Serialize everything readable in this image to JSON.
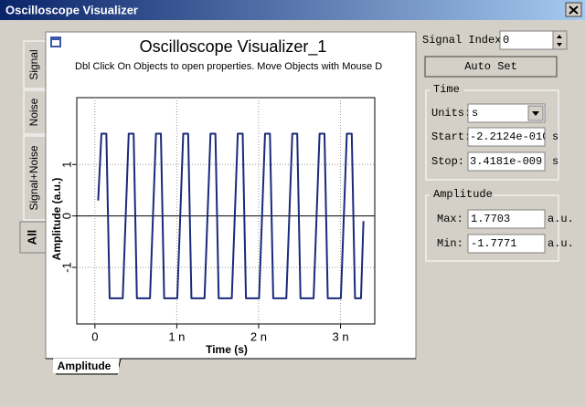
{
  "window": {
    "title": "Oscilloscope Visualizer"
  },
  "tabs": [
    "Signal",
    "Noise",
    "Signal+Noise",
    "All"
  ],
  "bottom_tab": "Amplitude",
  "chart_data": {
    "type": "line",
    "title": "Oscilloscope Visualizer_1",
    "subtitle": "Dbl Click On Objects to open properties.  Move Objects with Mouse D",
    "x_label": "Time (s)",
    "y_label": "Amplitude (a.u.)",
    "xlim": [
      -2.2124e-10,
      3.4181e-09
    ],
    "ylim": [
      -2.1,
      2.3
    ],
    "xticks": [
      {
        "value": 0,
        "label": "0"
      },
      {
        "value": 1e-09,
        "label": "1 n"
      },
      {
        "value": 2e-09,
        "label": "2 n"
      },
      {
        "value": 3e-09,
        "label": "3 n"
      }
    ],
    "yticks": [
      1,
      0,
      -1
    ],
    "grid": true,
    "series": [
      {
        "color": "#1a2a7a",
        "x": [
          4e-11,
          8e-11,
          1.4e-10,
          1.8e-10,
          3.4e-10,
          4.13e-10,
          4.73e-10,
          5.13e-10,
          6.73e-10,
          7.46e-10,
          8.06e-10,
          8.46e-10,
          1.006e-09,
          1.079e-09,
          1.139e-09,
          1.179e-09,
          1.339e-09,
          1.412e-09,
          1.472e-09,
          1.512e-09,
          1.672e-09,
          1.745e-09,
          1.805e-09,
          1.845e-09,
          2.005e-09,
          2.078e-09,
          2.138e-09,
          2.178e-09,
          2.338e-09,
          2.411e-09,
          2.471e-09,
          2.511e-09,
          2.671e-09,
          2.744e-09,
          2.804e-09,
          2.844e-09,
          3.004e-09,
          3.077e-09,
          3.137e-09,
          3.177e-09,
          3.25e-09,
          3.28e-09
        ],
        "values": [
          0.3,
          1.6,
          1.6,
          -1.6,
          -1.6,
          1.6,
          1.6,
          -1.6,
          -1.6,
          1.6,
          1.6,
          -1.6,
          -1.6,
          1.6,
          1.6,
          -1.6,
          -1.6,
          1.6,
          1.6,
          -1.6,
          -1.6,
          1.6,
          1.6,
          -1.6,
          -1.6,
          1.6,
          1.6,
          -1.6,
          -1.6,
          1.6,
          1.6,
          -1.6,
          -1.6,
          1.6,
          1.6,
          -1.6,
          -1.6,
          1.6,
          1.6,
          -1.6,
          -1.6,
          -0.1
        ]
      }
    ]
  },
  "controls": {
    "signal_index_label": "Signal Index:",
    "signal_index": "0",
    "auto_set": "Auto Set",
    "time_group": "Time",
    "units_label": "Units:",
    "units": "s",
    "start_label": "Start:",
    "start": "-2.2124e-010",
    "start_unit": "s",
    "stop_label": "Stop:",
    "stop": "3.4181e-009",
    "stop_unit": "s",
    "amplitude_group": "Amplitude",
    "max_label": "Max:",
    "max": "1.7703",
    "max_unit": "a.u.",
    "min_label": "Min:",
    "min": "-1.7771",
    "min_unit": "a.u."
  }
}
